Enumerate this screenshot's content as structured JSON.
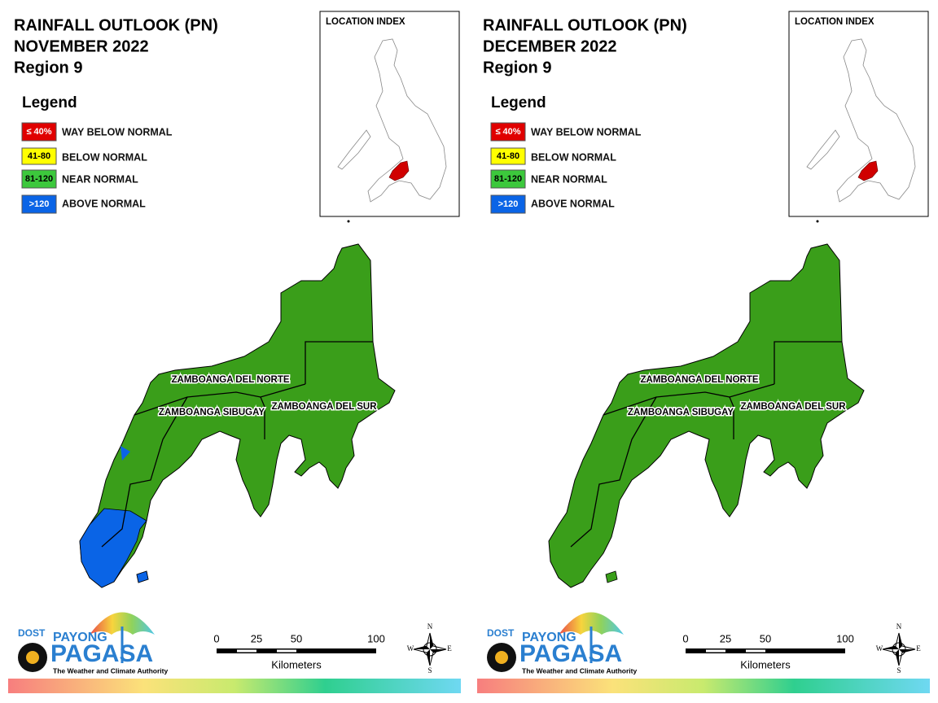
{
  "panels": [
    {
      "title": [
        "RAINFALL OUTLOOK (PN)",
        "NOVEMBER 2022",
        "Region 9"
      ],
      "legend": {
        "title": "Legend",
        "items": [
          {
            "range": "≤ 40%",
            "label": "WAY BELOW NORMAL"
          },
          {
            "range": "41-80",
            "label": "BELOW NORMAL"
          },
          {
            "range": "81-120",
            "label": "NEAR NORMAL"
          },
          {
            "range": ">120",
            "label": "ABOVE NORMAL"
          }
        ]
      },
      "location_index": "LOCATION INDEX",
      "provinces": [
        "ZAMBOANGA DEL NORTE",
        "ZAMBOANGA SIBUGAY",
        "ZAMBOANGA DEL SUR"
      ],
      "scale": {
        "ticks": [
          0,
          25,
          50,
          100
        ],
        "unit": "Kilometers"
      },
      "compass": [
        "N",
        "E",
        "S",
        "W"
      ],
      "logo": {
        "agency": "DOST",
        "line1": "PAYONG",
        "line2": "PAGASA",
        "tagline": "The Weather and Climate Authority"
      }
    },
    {
      "title": [
        "RAINFALL OUTLOOK (PN)",
        "DECEMBER 2022",
        "Region 9"
      ],
      "legend": {
        "title": "Legend",
        "items": [
          {
            "range": "≤ 40%",
            "label": "WAY BELOW NORMAL"
          },
          {
            "range": "41-80",
            "label": "BELOW NORMAL"
          },
          {
            "range": "81-120",
            "label": "NEAR NORMAL"
          },
          {
            "range": ">120",
            "label": "ABOVE NORMAL"
          }
        ]
      },
      "location_index": "LOCATION INDEX",
      "provinces": [
        "ZAMBOANGA DEL NORTE",
        "ZAMBOANGA SIBUGAY",
        "ZAMBOANGA DEL SUR"
      ],
      "scale": {
        "ticks": [
          0,
          25,
          50,
          100
        ],
        "unit": "Kilometers"
      },
      "compass": [
        "N",
        "E",
        "S",
        "W"
      ],
      "logo": {
        "agency": "DOST",
        "line1": "PAYONG",
        "line2": "PAGASA",
        "tagline": "The Weather and Climate Authority"
      }
    }
  ]
}
